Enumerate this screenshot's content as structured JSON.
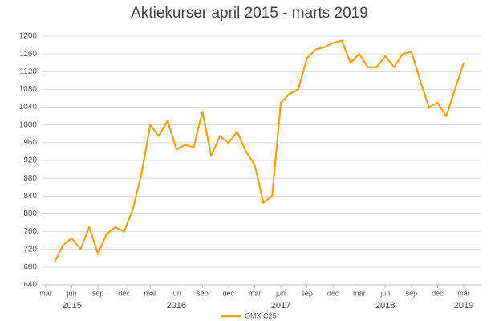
{
  "chart_data": {
    "type": "line",
    "title": "Aktiekurser april 2015 - marts 2019",
    "x": [
      "2015-04",
      "2015-05",
      "2015-06",
      "2015-07",
      "2015-08",
      "2015-09",
      "2015-10",
      "2015-11",
      "2015-12",
      "2016-01",
      "2016-02",
      "2016-03",
      "2016-04",
      "2016-05",
      "2016-06",
      "2016-07",
      "2016-08",
      "2016-09",
      "2016-10",
      "2016-11",
      "2016-12",
      "2017-01",
      "2017-02",
      "2017-03",
      "2017-04",
      "2017-05",
      "2017-06",
      "2017-07",
      "2017-08",
      "2017-09",
      "2017-10",
      "2017-11",
      "2017-12",
      "2018-01",
      "2018-02",
      "2018-03",
      "2018-04",
      "2018-05",
      "2018-06",
      "2018-07",
      "2018-08",
      "2018-09",
      "2018-10",
      "2018-11",
      "2018-12",
      "2019-01",
      "2019-02",
      "2019-03"
    ],
    "series": [
      {
        "name": "OMX C25",
        "color": "#f5a01a",
        "values": [
          690,
          730,
          745,
          720,
          770,
          710,
          755,
          770,
          760,
          810,
          890,
          1000,
          975,
          1010,
          945,
          955,
          950,
          1030,
          930,
          975,
          960,
          985,
          940,
          910,
          825,
          840,
          1050,
          1070,
          1080,
          1150,
          1170,
          1175,
          1185,
          1190,
          1140,
          1160,
          1130,
          1130,
          1155,
          1130,
          1160,
          1165,
          1100,
          1040,
          1050,
          1020,
          1080,
          1140
        ]
      }
    ],
    "xlim": [
      "2015-03",
      "2019-03"
    ],
    "xticks": [
      {
        "value": "2015-03",
        "label": "mar"
      },
      {
        "value": "2015-06",
        "label": "jun"
      },
      {
        "value": "2015-09",
        "label": "sep"
      },
      {
        "value": "2015-12",
        "label": "dec"
      },
      {
        "value": "2016-03",
        "label": "mar"
      },
      {
        "value": "2016-06",
        "label": "jun"
      },
      {
        "value": "2016-09",
        "label": "sep"
      },
      {
        "value": "2016-12",
        "label": "dec"
      },
      {
        "value": "2017-03",
        "label": "mar"
      },
      {
        "value": "2017-06",
        "label": "jun"
      },
      {
        "value": "2017-09",
        "label": "sep"
      },
      {
        "value": "2017-12",
        "label": "dec"
      },
      {
        "value": "2018-03",
        "label": "mar"
      },
      {
        "value": "2018-06",
        "label": "jun"
      },
      {
        "value": "2018-09",
        "label": "sep"
      },
      {
        "value": "2018-12",
        "label": "dec"
      },
      {
        "value": "2019-03",
        "label": "mar"
      }
    ],
    "x_groups": [
      "2015",
      "2016",
      "2017",
      "2018",
      "2019"
    ],
    "ylim": [
      640,
      1200
    ],
    "yticks": [
      640,
      680,
      720,
      760,
      800,
      840,
      880,
      920,
      960,
      1000,
      1040,
      1080,
      1120,
      1160,
      1200
    ],
    "grid": true,
    "legend": "bottom"
  }
}
